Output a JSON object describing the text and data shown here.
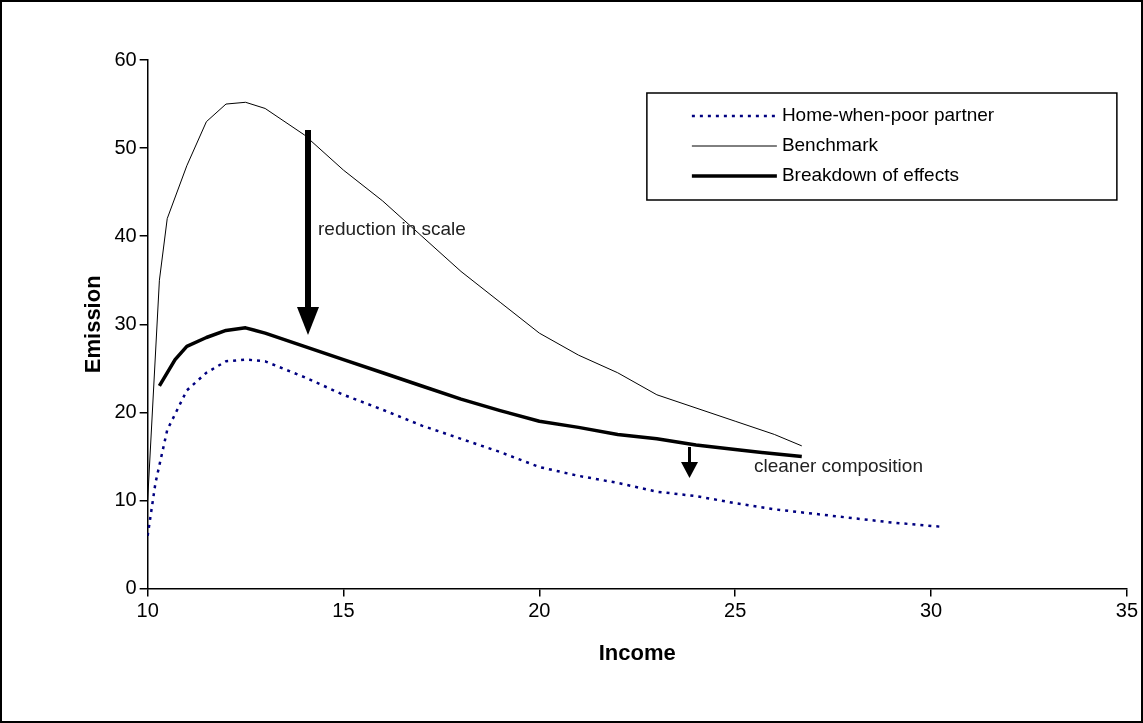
{
  "chart_data": {
    "type": "line",
    "xlabel": "Income",
    "ylabel": "Emission",
    "xlim": [
      10,
      35
    ],
    "xticks": [
      10,
      15,
      20,
      25,
      30,
      35
    ],
    "ylim": [
      0,
      60
    ],
    "yticks": [
      0,
      10,
      20,
      30,
      40,
      50,
      60
    ],
    "grid": false,
    "legend": "top right",
    "marker": "none",
    "annotations": [
      "reduction in scale",
      "cleaner composition"
    ],
    "series": [
      {
        "name": "Home-when-poor partner",
        "color": "#000080",
        "line_style": "dotted",
        "x": [
          10,
          10.2,
          10.5,
          11,
          11.5,
          12,
          12.5,
          13,
          14,
          15,
          16,
          17,
          18,
          19,
          20,
          21,
          22,
          23,
          24,
          25,
          26,
          27,
          28,
          29,
          30.3
        ],
        "values": [
          6,
          12,
          18,
          22.5,
          24.5,
          25.8,
          26,
          25.8,
          24,
          22,
          20.3,
          18.5,
          17,
          15.5,
          13.8,
          12.8,
          12,
          11,
          10.5,
          9.7,
          9,
          8.5,
          8,
          7.5,
          7
        ]
      },
      {
        "name": "Benchmark",
        "color": "#000000",
        "line_style": "solid",
        "x": [
          10,
          10.3,
          10.5,
          11,
          11.5,
          12,
          12.5,
          13,
          14,
          15,
          16,
          17,
          18,
          19,
          20,
          21,
          22,
          23,
          24,
          25,
          26,
          26.7
        ],
        "values": [
          10,
          35,
          42,
          48,
          53,
          55,
          55.2,
          54.5,
          51.5,
          47.5,
          44,
          40,
          36,
          32.5,
          29,
          26.5,
          24.5,
          22,
          20.5,
          19,
          17.5,
          16.2
        ]
      },
      {
        "name": "Breakdown of effects",
        "color": "#000000",
        "line_style": "solid",
        "x": [
          10.3,
          10.7,
          11,
          11.5,
          12,
          12.5,
          13,
          14,
          15,
          16,
          17,
          18,
          19,
          20,
          21,
          22,
          23,
          24,
          25,
          26,
          26.7
        ],
        "values": [
          23,
          26,
          27.5,
          28.5,
          29.3,
          29.6,
          29,
          27.5,
          26,
          24.5,
          23,
          21.5,
          20.2,
          19,
          18.3,
          17.5,
          17,
          16.3,
          15.8,
          15.3,
          15
        ]
      }
    ]
  }
}
